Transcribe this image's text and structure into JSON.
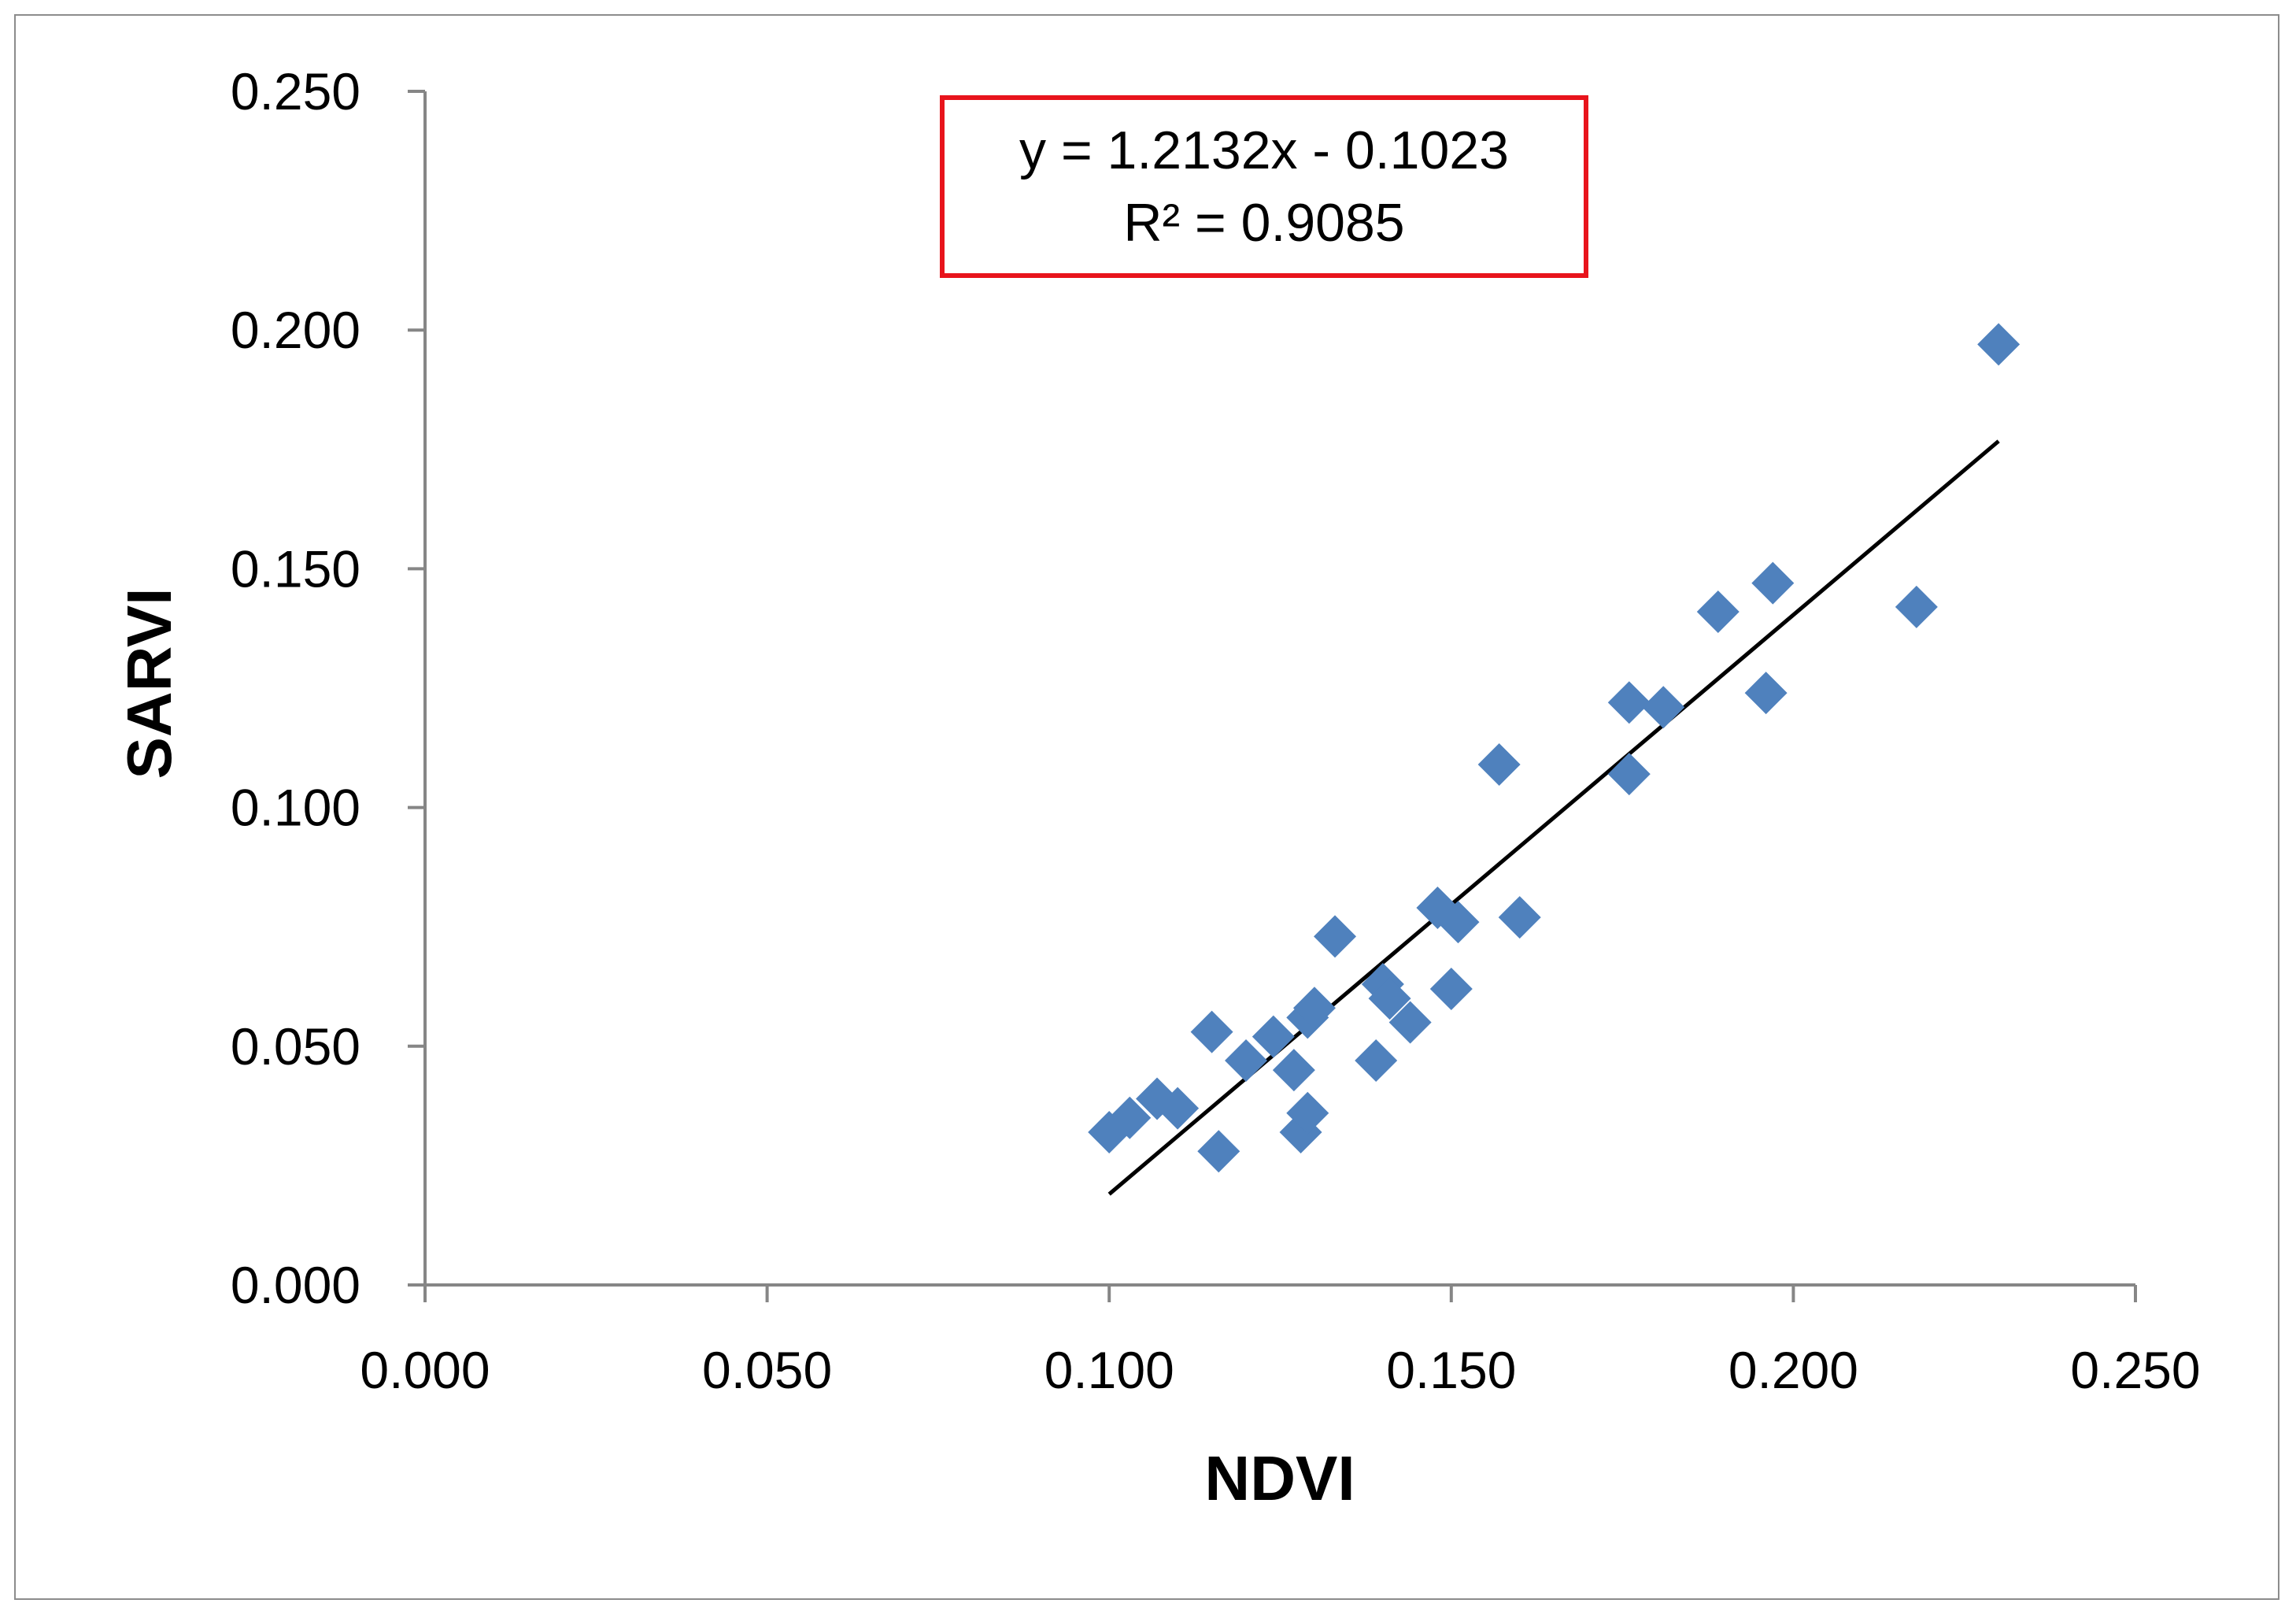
{
  "chart_data": {
    "type": "scatter",
    "title": "",
    "xlabel": "NDVI",
    "ylabel": "SARVI",
    "xlim": [
      0.0,
      0.25
    ],
    "ylim": [
      0.0,
      0.25
    ],
    "x_ticks": [
      "0.000",
      "0.050",
      "0.100",
      "0.150",
      "0.200",
      "0.250"
    ],
    "y_ticks": [
      "0.000",
      "0.050",
      "0.100",
      "0.150",
      "0.200",
      "0.250"
    ],
    "grid": false,
    "legend": "none",
    "marker_color": "#4f81bd",
    "trendline": {
      "slope": 1.2132,
      "intercept": -0.1023,
      "x_range": [
        0.1,
        0.23
      ],
      "equation": "y = 1.2132x - 0.1023",
      "r_squared": "R² = 0.9085"
    },
    "points": [
      {
        "x": 0.1,
        "y": 0.032
      },
      {
        "x": 0.103,
        "y": 0.035
      },
      {
        "x": 0.107,
        "y": 0.039
      },
      {
        "x": 0.11,
        "y": 0.037
      },
      {
        "x": 0.115,
        "y": 0.053
      },
      {
        "x": 0.116,
        "y": 0.028
      },
      {
        "x": 0.12,
        "y": 0.047
      },
      {
        "x": 0.124,
        "y": 0.052
      },
      {
        "x": 0.127,
        "y": 0.045
      },
      {
        "x": 0.128,
        "y": 0.032
      },
      {
        "x": 0.129,
        "y": 0.036
      },
      {
        "x": 0.129,
        "y": 0.056
      },
      {
        "x": 0.13,
        "y": 0.058
      },
      {
        "x": 0.133,
        "y": 0.073
      },
      {
        "x": 0.139,
        "y": 0.047
      },
      {
        "x": 0.14,
        "y": 0.063
      },
      {
        "x": 0.141,
        "y": 0.06
      },
      {
        "x": 0.144,
        "y": 0.055
      },
      {
        "x": 0.148,
        "y": 0.079
      },
      {
        "x": 0.15,
        "y": 0.062
      },
      {
        "x": 0.151,
        "y": 0.076
      },
      {
        "x": 0.157,
        "y": 0.109
      },
      {
        "x": 0.16,
        "y": 0.077
      },
      {
        "x": 0.176,
        "y": 0.122
      },
      {
        "x": 0.176,
        "y": 0.107
      },
      {
        "x": 0.181,
        "y": 0.121
      },
      {
        "x": 0.189,
        "y": 0.141
      },
      {
        "x": 0.196,
        "y": 0.124
      },
      {
        "x": 0.197,
        "y": 0.147
      },
      {
        "x": 0.218,
        "y": 0.142
      },
      {
        "x": 0.23,
        "y": 0.197
      }
    ]
  }
}
